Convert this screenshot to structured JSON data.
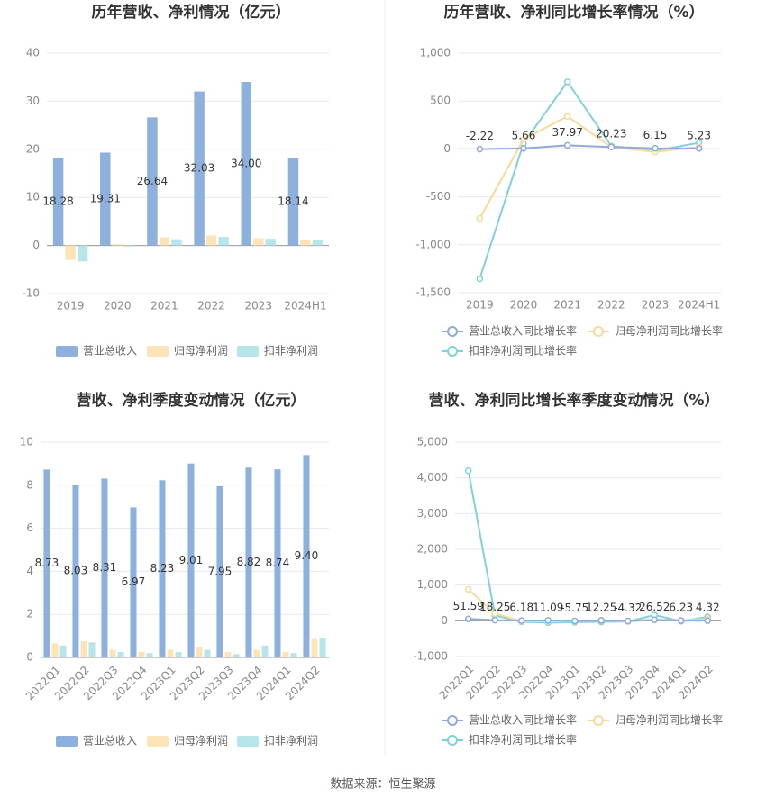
{
  "chart_data": [
    {
      "type": "bar",
      "title": "历年营收、净利情况（亿元）",
      "categories": [
        "2019",
        "2020",
        "2021",
        "2022",
        "2023",
        "2024H1"
      ],
      "series": [
        {
          "name": "营业总收入",
          "color": "#8eb0dd",
          "values": [
            18.28,
            19.31,
            26.64,
            32.03,
            34.0,
            18.14
          ],
          "value_labels": [
            "18.28",
            "19.31",
            "26.64",
            "32.03",
            "34.00",
            "18.14"
          ]
        },
        {
          "name": "归母净利润",
          "color": "#fce4b6",
          "values": [
            -3.0,
            0.3,
            1.7,
            2.1,
            1.5,
            1.2
          ]
        },
        {
          "name": "扣非净利润",
          "color": "#b6e5ea",
          "values": [
            -3.3,
            -0.2,
            1.3,
            1.8,
            1.4,
            1.1
          ]
        }
      ],
      "ylim": [
        -10,
        40
      ],
      "yticks": [
        -10,
        0,
        10,
        20,
        30,
        40
      ],
      "grid": true
    },
    {
      "type": "line",
      "title": "历年营收、净利同比增长率情况（%）",
      "categories": [
        "2019",
        "2020",
        "2021",
        "2022",
        "2023",
        "2024H1"
      ],
      "series": [
        {
          "name": "营业总收入同比增长率",
          "color": "#8faadc",
          "values": [
            -2.22,
            5.66,
            37.97,
            20.23,
            6.15,
            5.23
          ],
          "labeled": true
        },
        {
          "name": "归母净利润同比增长率",
          "color": "#fbd89a",
          "values": [
            -725,
            100,
            340,
            20,
            -30,
            20
          ]
        },
        {
          "name": "扣非净利润同比增长率",
          "color": "#7fd3d8",
          "values": [
            -1355,
            60,
            700,
            30,
            -20,
            65
          ]
        }
      ],
      "ylim": [
        -1500,
        1000
      ],
      "yticks": [
        {
          "value": -1500,
          "label": "-1,500"
        },
        {
          "value": -1000,
          "label": "-1,000"
        },
        -500,
        0,
        500,
        {
          "value": 1000,
          "label": "1,000"
        }
      ],
      "grid": true
    },
    {
      "type": "bar",
      "title": "营收、净利季度变动情况（亿元）",
      "categories": [
        "2022Q1",
        "2022Q2",
        "2022Q3",
        "2022Q4",
        "2023Q1",
        "2023Q2",
        "2023Q3",
        "2023Q4",
        "2024Q1",
        "2024Q2"
      ],
      "series": [
        {
          "name": "营业总收入",
          "color": "#8eb0dd",
          "values": [
            8.73,
            8.03,
            8.31,
            6.97,
            8.23,
            9.01,
            7.95,
            8.82,
            8.74,
            9.4
          ],
          "value_labels": [
            "8.73",
            "8.03",
            "8.31",
            "6.97",
            "8.23",
            "9.01",
            "7.95",
            "8.82",
            "8.74",
            "9.40"
          ]
        },
        {
          "name": "归母净利润",
          "color": "#fce4b6",
          "values": [
            0.65,
            0.75,
            0.35,
            0.25,
            0.35,
            0.5,
            0.25,
            0.35,
            0.25,
            0.85
          ]
        },
        {
          "name": "扣非净利润",
          "color": "#b6e5ea",
          "values": [
            0.55,
            0.7,
            0.25,
            0.2,
            0.25,
            0.35,
            0.15,
            0.55,
            0.2,
            0.9
          ]
        }
      ],
      "ylim": [
        0,
        10
      ],
      "yticks": [
        0,
        2,
        4,
        6,
        8,
        10
      ],
      "grid": true
    },
    {
      "type": "line",
      "title": "营收、净利同比增长率季度变动情况（%）",
      "categories": [
        "2022Q1",
        "2022Q2",
        "2022Q3",
        "2022Q4",
        "2023Q1",
        "2023Q2",
        "2023Q3",
        "2023Q4",
        "2024Q1",
        "2024Q2"
      ],
      "series": [
        {
          "name": "营业总收入同比增长率",
          "color": "#8faadc",
          "values": [
            51.59,
            18.25,
            6.18,
            11.09,
            -5.75,
            12.25,
            -4.32,
            26.52,
            6.23,
            4.32
          ],
          "labeled": true
        },
        {
          "name": "归母净利润同比增长率",
          "color": "#fbd89a",
          "values": [
            880,
            200,
            -10,
            -20,
            -15,
            10,
            -20,
            30,
            10,
            50
          ]
        },
        {
          "name": "扣非净利润同比增长率",
          "color": "#7fd3d8",
          "values": [
            4200,
            150,
            -30,
            -50,
            -40,
            -30,
            -20,
            160,
            -10,
            110
          ]
        }
      ],
      "ylim": [
        -1000,
        5000
      ],
      "yticks": [
        {
          "value": -1000,
          "label": "-1,000"
        },
        0,
        {
          "value": 1000,
          "label": "1,000"
        },
        {
          "value": 2000,
          "label": "2,000"
        },
        {
          "value": 3000,
          "label": "3,000"
        },
        {
          "value": 4000,
          "label": "4,000"
        },
        {
          "value": 5000,
          "label": "5,000"
        }
      ],
      "grid": true
    }
  ],
  "source": "数据来源：恒生聚源"
}
